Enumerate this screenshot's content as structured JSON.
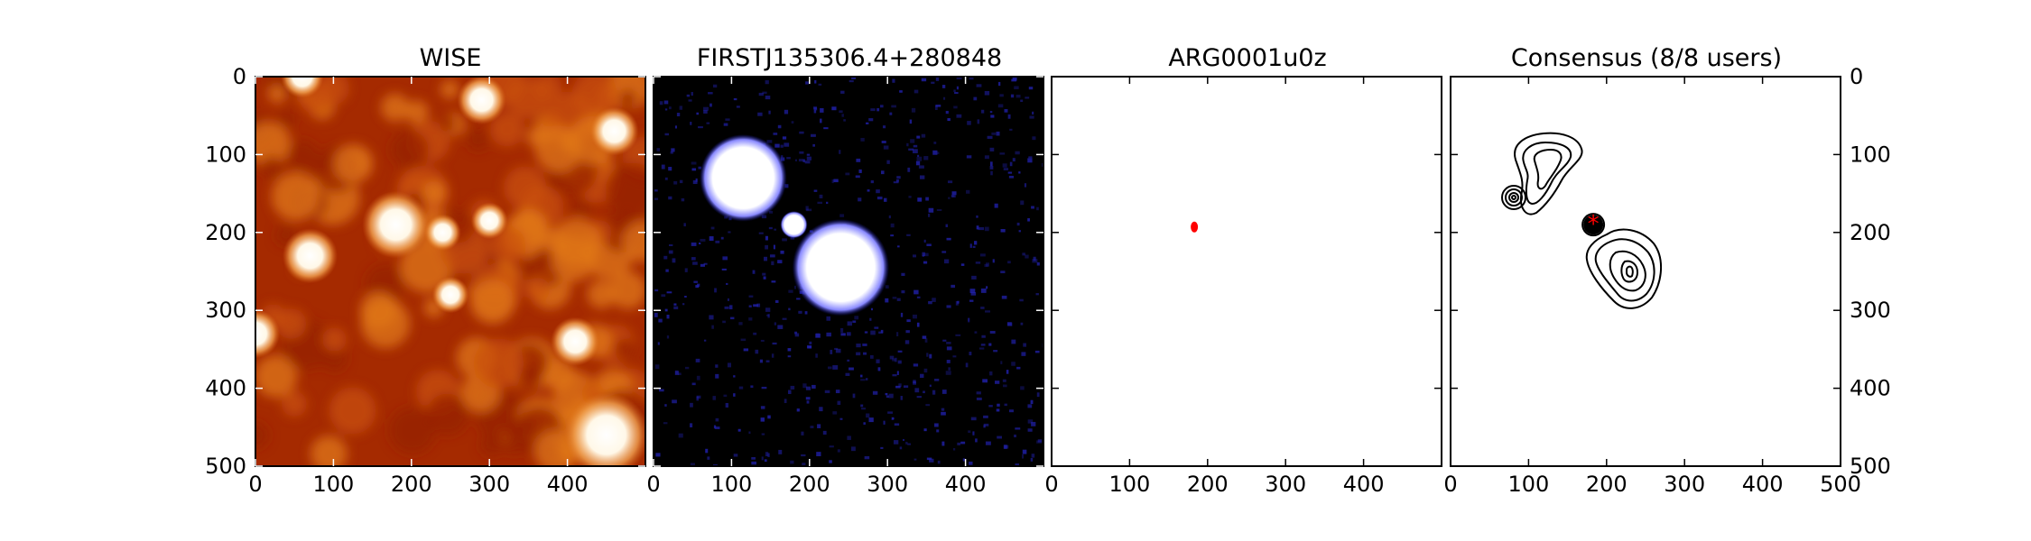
{
  "chart_data": [
    {
      "type": "heatmap",
      "title": "WISE",
      "xlim": [
        0,
        500
      ],
      "ylim": [
        500,
        0
      ],
      "x_ticks": [
        0,
        100,
        200,
        300,
        400
      ],
      "y_ticks": [
        0,
        100,
        200,
        300,
        400,
        500
      ],
      "colormap": "gist_heat",
      "colors": {
        "low": "#a52a00",
        "mid": "#dd6a10",
        "high": "#ffffff"
      },
      "sources": [
        {
          "x": 60,
          "y": 0,
          "r": 14
        },
        {
          "x": 290,
          "y": 30,
          "r": 16
        },
        {
          "x": 460,
          "y": 70,
          "r": 16
        },
        {
          "x": 180,
          "y": 190,
          "r": 22
        },
        {
          "x": 70,
          "y": 230,
          "r": 18
        },
        {
          "x": 240,
          "y": 200,
          "r": 12
        },
        {
          "x": 300,
          "y": 185,
          "r": 12
        },
        {
          "x": 250,
          "y": 280,
          "r": 12
        },
        {
          "x": 410,
          "y": 340,
          "r": 16
        },
        {
          "x": 0,
          "y": 330,
          "r": 16
        },
        {
          "x": 450,
          "y": 460,
          "r": 28
        }
      ]
    },
    {
      "type": "heatmap",
      "title": "FIRSTJ135306.4+280848",
      "xlim": [
        0,
        500
      ],
      "ylim": [
        500,
        0
      ],
      "x_ticks": [
        0,
        100,
        200,
        300,
        400
      ],
      "y_ticks": [],
      "colormap": "gist_heat-blue",
      "colors": {
        "background": "#000000",
        "noise": "#2020a8",
        "source": "#ffffff"
      },
      "sources": [
        {
          "x": 115,
          "y": 130,
          "r": 45
        },
        {
          "x": 180,
          "y": 190,
          "r": 14
        },
        {
          "x": 240,
          "y": 245,
          "r": 50
        }
      ]
    },
    {
      "type": "scatter",
      "title": "ARG0001u0z",
      "xlim": [
        0,
        500
      ],
      "ylim": [
        500,
        0
      ],
      "x_ticks": [
        0,
        100,
        200,
        300,
        400
      ],
      "y_ticks": [],
      "series": [
        {
          "x": [
            183
          ],
          "y": [
            193
          ],
          "color": "#ff0000"
        }
      ]
    },
    {
      "type": "contour",
      "title": "Consensus (8/8 users)",
      "xlim": [
        0,
        500
      ],
      "ylim": [
        500,
        0
      ],
      "x_ticks": [
        0,
        100,
        200,
        300,
        400,
        500
      ],
      "y_ticks": [
        0,
        100,
        200,
        300,
        400,
        500
      ],
      "y_axis_side": "right",
      "marker": {
        "x": 183,
        "y": 190,
        "symbol": "*",
        "color": "#ff0000"
      }
    }
  ]
}
